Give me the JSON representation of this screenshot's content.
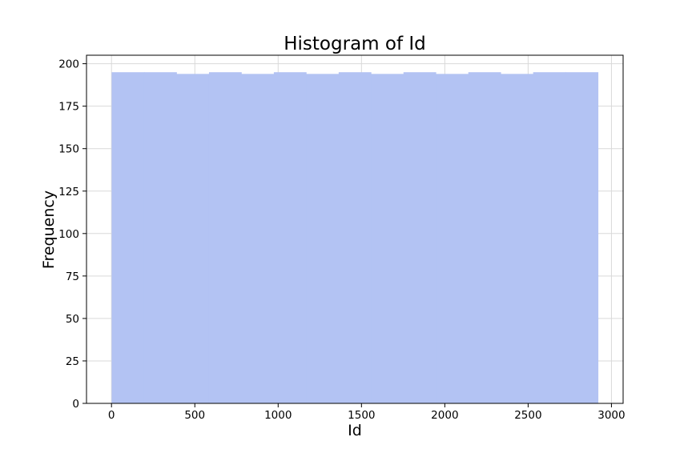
{
  "chart_data": {
    "type": "bar",
    "title": "Histogram of Id",
    "xlabel": "Id",
    "ylabel": "Frequency",
    "xlim": [
      -150,
      3070
    ],
    "ylim": [
      0,
      205
    ],
    "x_ticks": [
      0,
      500,
      1000,
      1500,
      2000,
      2500,
      3000
    ],
    "y_ticks": [
      0,
      25,
      50,
      75,
      100,
      125,
      150,
      175,
      200
    ],
    "grid": true,
    "bar_color": "#b3c3f3",
    "bins": [
      {
        "x0": 1,
        "x1": 196,
        "value": 195
      },
      {
        "x0": 196,
        "x1": 390,
        "value": 195
      },
      {
        "x0": 390,
        "x1": 585,
        "value": 194
      },
      {
        "x0": 585,
        "x1": 779,
        "value": 195
      },
      {
        "x0": 779,
        "x1": 974,
        "value": 194
      },
      {
        "x0": 974,
        "x1": 1168,
        "value": 195
      },
      {
        "x0": 1168,
        "x1": 1363,
        "value": 194
      },
      {
        "x0": 1363,
        "x1": 1557,
        "value": 195
      },
      {
        "x0": 1557,
        "x1": 1752,
        "value": 194
      },
      {
        "x0": 1752,
        "x1": 1946,
        "value": 195
      },
      {
        "x0": 1946,
        "x1": 2141,
        "value": 194
      },
      {
        "x0": 2141,
        "x1": 2335,
        "value": 195
      },
      {
        "x0": 2335,
        "x1": 2530,
        "value": 194
      },
      {
        "x0": 2530,
        "x1": 2724,
        "value": 195
      },
      {
        "x0": 2724,
        "x1": 2919,
        "value": 195
      }
    ]
  }
}
